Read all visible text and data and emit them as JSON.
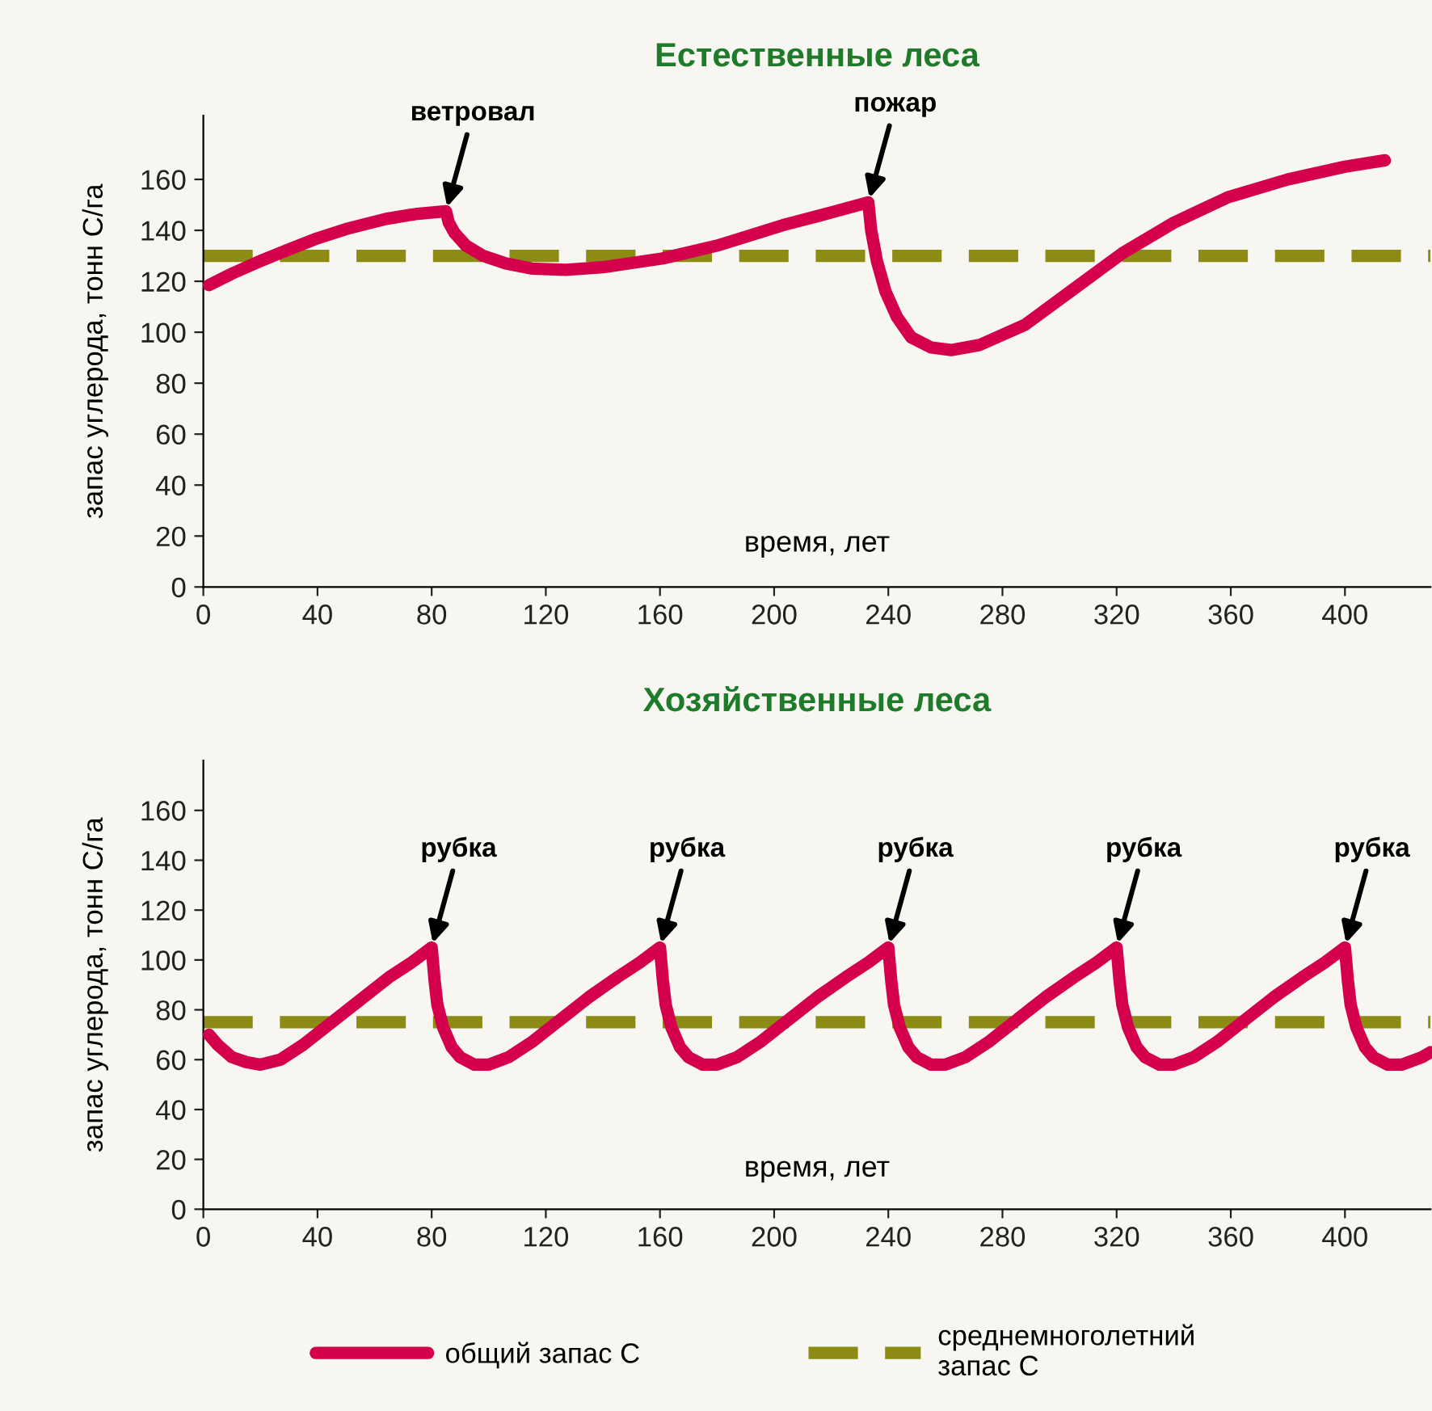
{
  "chart_data": [
    {
      "type": "line",
      "title": "Естественные леса",
      "xlabel": "время, лет",
      "ylabel": "запас углерода, тонн С/га",
      "xlim": [
        0,
        430
      ],
      "ylim": [
        0,
        185
      ],
      "xticks": [
        0,
        40,
        80,
        120,
        160,
        200,
        240,
        280,
        320,
        360,
        400
      ],
      "yticks": [
        0,
        20,
        40,
        60,
        80,
        100,
        120,
        140,
        160
      ],
      "grid": false,
      "line_style": "solid",
      "marker": "none",
      "series": [
        {
          "color": "#d4004c",
          "x": [
            2,
            10,
            19,
            30,
            39,
            50,
            64,
            75,
            85,
            86,
            88,
            92,
            98,
            106,
            115,
            127,
            140,
            161,
            180,
            203,
            220,
            233,
            234,
            236,
            239,
            243,
            248,
            255,
            262,
            272,
            288,
            305,
            322,
            340,
            359,
            380,
            400,
            414
          ],
          "values": [
            118.5,
            123,
            127.5,
            132.5,
            136.5,
            140.5,
            144.5,
            146.5,
            147.5,
            143,
            139,
            134,
            130,
            127,
            125,
            124.5,
            125.5,
            129,
            134,
            142,
            147,
            151,
            140,
            128,
            116,
            106,
            98,
            94,
            93,
            95,
            103,
            117,
            131,
            143,
            153,
            160,
            165,
            167.5
          ]
        }
      ],
      "ref_lines": [
        {
          "axis": "y",
          "value": 130,
          "color": "#8c8c14",
          "line_style": "dashed"
        }
      ],
      "annotations": [
        {
          "text": "ветровал",
          "x": 85,
          "y": 147.5
        },
        {
          "text": "пожар",
          "x": 233,
          "y": 151
        }
      ]
    },
    {
      "type": "line",
      "title": "Хозяйственные леса",
      "xlabel": "время, лет",
      "ylabel": "запас углерода, тонн С/га",
      "xlim": [
        0,
        430
      ],
      "ylim": [
        0,
        180
      ],
      "xticks": [
        0,
        40,
        80,
        120,
        160,
        200,
        240,
        280,
        320,
        360,
        400
      ],
      "yticks": [
        0,
        20,
        40,
        60,
        80,
        100,
        120,
        140,
        160
      ],
      "grid": false,
      "line_style": "solid",
      "marker": "none",
      "legend": "bottom",
      "series": [
        {
          "name": "общий запас С",
          "color": "#d4004c",
          "x": [
            2,
            5,
            10,
            15,
            20,
            27,
            35,
            45,
            55,
            65,
            73,
            80,
            81,
            82,
            84,
            87,
            90,
            95,
            100,
            107,
            115,
            125,
            135,
            145,
            153,
            160,
            161,
            162,
            164,
            167,
            170,
            175,
            180,
            187,
            195,
            205,
            215,
            225,
            233,
            240,
            241,
            242,
            244,
            247,
            250,
            255,
            260,
            267,
            275,
            285,
            295,
            305,
            313,
            320,
            321,
            322,
            324,
            327,
            330,
            335,
            340,
            347,
            355,
            365,
            375,
            385,
            393,
            400,
            401,
            402,
            404,
            407,
            410,
            415,
            420,
            427,
            430
          ],
          "values": [
            70,
            66,
            61,
            59,
            58,
            60,
            66,
            75,
            84,
            93,
            99,
            105,
            92,
            82,
            73,
            65,
            61,
            58,
            58,
            61,
            67,
            76,
            85,
            93,
            99,
            105,
            92,
            82,
            73,
            65,
            61,
            58,
            58,
            61,
            67,
            76,
            85,
            93,
            99,
            105,
            92,
            82,
            73,
            65,
            61,
            58,
            58,
            61,
            67,
            76,
            85,
            93,
            99,
            105,
            92,
            82,
            73,
            65,
            61,
            58,
            58,
            61,
            67,
            76,
            85,
            93,
            99,
            105,
            92,
            82,
            73,
            65,
            61,
            58,
            58,
            61,
            63
          ]
        }
      ],
      "ref_lines": [
        {
          "axis": "y",
          "value": 75,
          "label": "среднемноголетний\nзапас С",
          "color": "#8c8c14",
          "line_style": "dashed"
        }
      ],
      "annotations": [
        {
          "text": "рубка",
          "x": 80,
          "y": 105
        },
        {
          "text": "рубка",
          "x": 160,
          "y": 105
        },
        {
          "text": "рубка",
          "x": 240,
          "y": 105
        },
        {
          "text": "рубка",
          "x": 320,
          "y": 105
        },
        {
          "text": "рубка",
          "x": 400,
          "y": 105
        }
      ]
    }
  ]
}
